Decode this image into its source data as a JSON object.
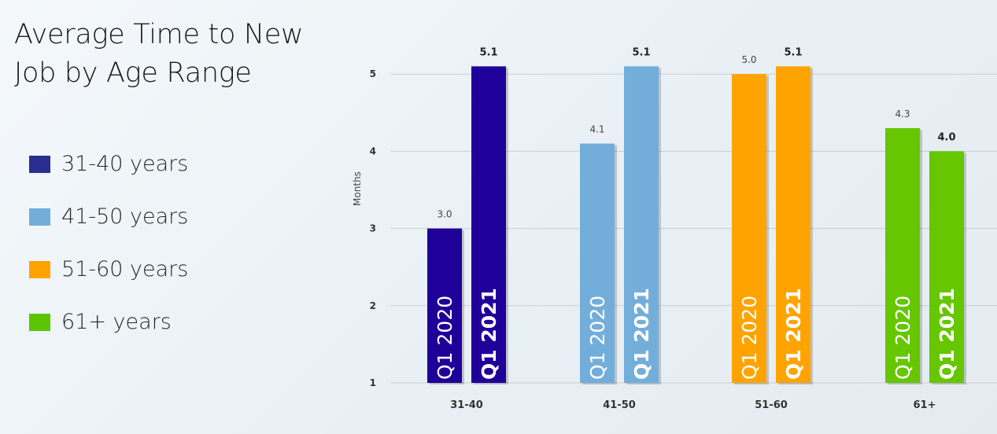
{
  "title": "Average Time to New Job by Age Range",
  "legend": [
    {
      "label": "31-40 years",
      "color": "#2a2f8f"
    },
    {
      "label": "41-50 years",
      "color": "#73aedb"
    },
    {
      "label": "51-60 years",
      "color": "#ffa300"
    },
    {
      "label": "61+ years",
      "color": "#5cc400"
    }
  ],
  "chart_data": {
    "type": "bar",
    "title": "Average Time to New Job by Age Range",
    "xlabel": "",
    "ylabel": "Months",
    "ylim": [
      1,
      6
    ],
    "yticks": [
      1,
      2,
      3,
      4,
      5,
      6
    ],
    "grid": true,
    "categories": [
      "31-40",
      "41-50",
      "51-60",
      "61+"
    ],
    "series": [
      {
        "name": "Q1 2020",
        "values": [
          3.0,
          4.1,
          5.0,
          4.3
        ],
        "value_labels": [
          "3.0",
          "4.1",
          "5.0",
          "4.3"
        ]
      },
      {
        "name": "Q1 2021",
        "values": [
          5.1,
          5.1,
          5.1,
          4.0
        ],
        "value_labels": [
          "5.1",
          "5.1",
          "5.1",
          "4.0"
        ]
      }
    ],
    "colors": {
      "31-40": [
        "#1f0099",
        "#1f0099"
      ],
      "41-50": [
        "#73aedb",
        "#73aedb"
      ],
      "51-60": [
        "#ffa300",
        "#ffa300"
      ],
      "61+": [
        "#66c600",
        "#66c600"
      ]
    }
  }
}
